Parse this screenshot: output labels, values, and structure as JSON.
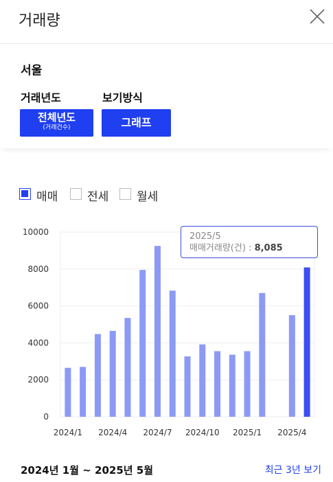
{
  "header": {
    "title": "거래량",
    "close_icon": "close-icon"
  },
  "filters": {
    "region": "서울",
    "year_label": "거래년도",
    "view_label": "보기방식",
    "year_button": {
      "main": "전체년도",
      "sub": "(거래건수)"
    },
    "view_button": "그래프"
  },
  "legend": [
    {
      "label": "매매",
      "checked": true
    },
    {
      "label": "전세",
      "checked": false
    },
    {
      "label": "월세",
      "checked": false
    }
  ],
  "tooltip": {
    "date": "2025/5",
    "label": "매매거래량(건)",
    "sep": " : ",
    "value": "8,085"
  },
  "footer": {
    "period": "2024년 1월 ~ 2025년 5월",
    "recent_link": "최근 3년 보기"
  },
  "colors": {
    "accent": "#1f3ff0",
    "bar": "#8c9af5",
    "bar_highlight": "#3b4ff2"
  },
  "chart_data": {
    "type": "bar",
    "categories": [
      "2024/1",
      "2024/2",
      "2024/3",
      "2024/4",
      "2024/5",
      "2024/6",
      "2024/7",
      "2024/8",
      "2024/9",
      "2024/10",
      "2024/11",
      "2024/12",
      "2025/1",
      "2025/2",
      "2025/3",
      "2025/4",
      "2025/5"
    ],
    "values": [
      2650,
      2700,
      4480,
      4650,
      5350,
      7950,
      9250,
      6830,
      3270,
      3920,
      3550,
      3360,
      3550,
      6700,
      null,
      5500,
      8085
    ],
    "tick_labels": [
      "2024/1",
      "2024/4",
      "2024/7",
      "2024/10",
      "2025/1",
      "2025/4"
    ],
    "yticks": [
      0,
      2000,
      4000,
      6000,
      8000,
      10000
    ],
    "ylim": [
      0,
      10000
    ],
    "grid": true,
    "highlight_category": "2025/5"
  }
}
